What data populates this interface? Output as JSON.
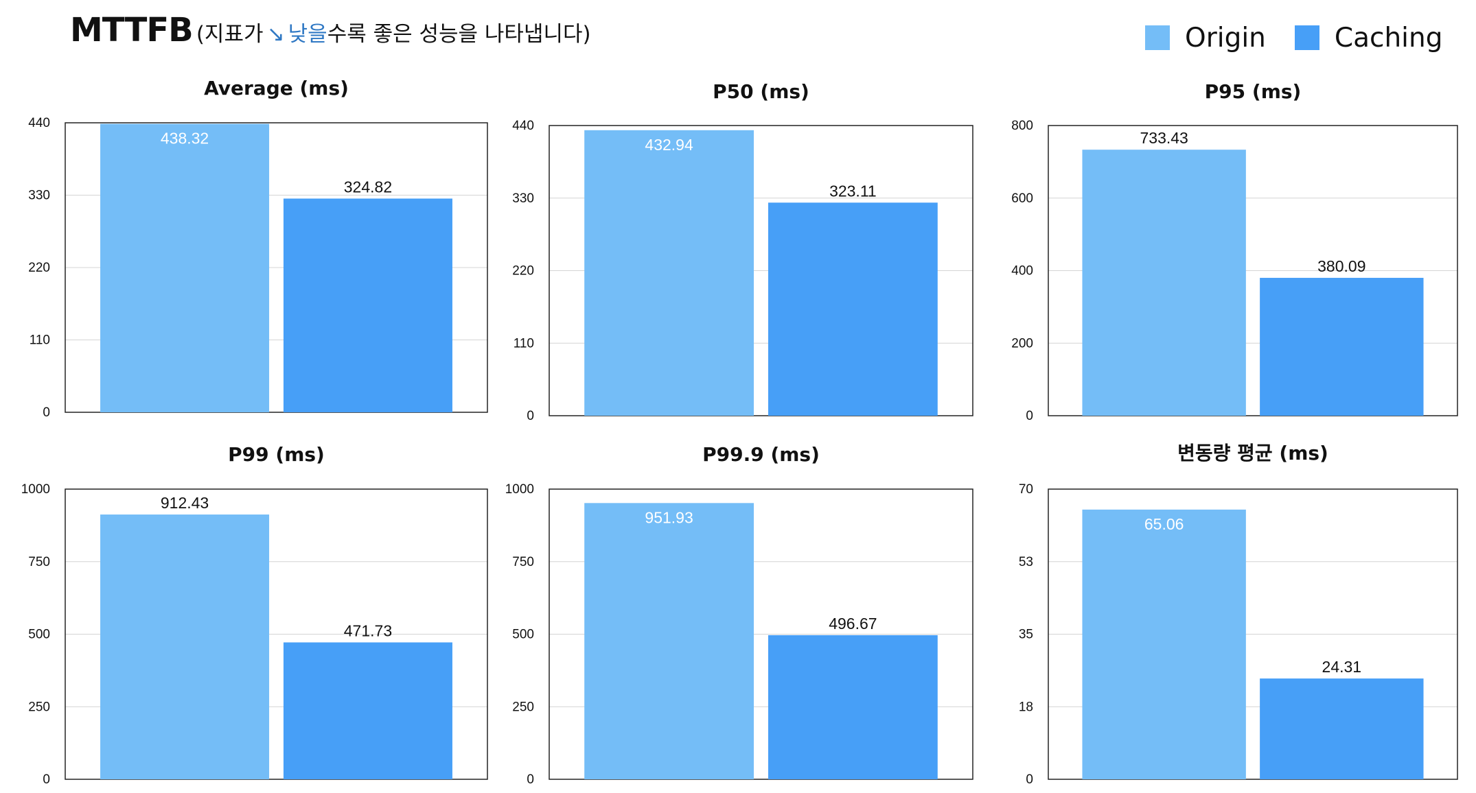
{
  "header": {
    "title_main": "MTTFB",
    "title_paren_open": "(지표가",
    "title_arrow": "↘",
    "title_highlight": "낮을",
    "title_rest": "수록 좋은 성능을 나타냅니다)"
  },
  "legend": [
    {
      "name": "Origin",
      "color": "#74bdf7"
    },
    {
      "name": "Caching",
      "color": "#479ff7"
    }
  ],
  "chart_data": [
    {
      "type": "bar",
      "title": "Average (ms)",
      "categories": [
        "Origin",
        "Caching"
      ],
      "values": [
        438.32,
        324.82
      ],
      "ylim": [
        0,
        440
      ],
      "yticks": [
        0,
        110,
        220,
        330,
        440
      ],
      "xlabel": "",
      "ylabel": "",
      "grid": true,
      "legend": "top-right"
    },
    {
      "type": "bar",
      "title": "P50 (ms)",
      "categories": [
        "Origin",
        "Caching"
      ],
      "values": [
        432.94,
        323.11
      ],
      "ylim": [
        0,
        440
      ],
      "yticks": [
        0,
        110,
        220,
        330,
        440
      ],
      "xlabel": "",
      "ylabel": "",
      "grid": true,
      "legend": "top-right"
    },
    {
      "type": "bar",
      "title": "P95 (ms)",
      "categories": [
        "Origin",
        "Caching"
      ],
      "values": [
        733.43,
        380.09
      ],
      "ylim": [
        0,
        800
      ],
      "yticks": [
        0,
        200,
        400,
        600,
        800
      ],
      "xlabel": "",
      "ylabel": "",
      "grid": true,
      "legend": "top-right"
    },
    {
      "type": "bar",
      "title": "P99 (ms)",
      "categories": [
        "Origin",
        "Caching"
      ],
      "values": [
        912.43,
        471.73
      ],
      "ylim": [
        0,
        1000
      ],
      "yticks": [
        0,
        250,
        500,
        750,
        1000
      ],
      "xlabel": "",
      "ylabel": "",
      "grid": true,
      "legend": "top-right"
    },
    {
      "type": "bar",
      "title": "P99.9 (ms)",
      "categories": [
        "Origin",
        "Caching"
      ],
      "values": [
        951.93,
        496.67
      ],
      "ylim": [
        0,
        1000
      ],
      "yticks": [
        0,
        250,
        500,
        750,
        1000
      ],
      "xlabel": "",
      "ylabel": "",
      "grid": true,
      "legend": "top-right"
    },
    {
      "type": "bar",
      "title": "변동량 평균 (ms)",
      "categories": [
        "Origin",
        "Caching"
      ],
      "values": [
        65.06,
        24.31
      ],
      "ylim": [
        0,
        70
      ],
      "yticks": [
        0,
        17.5,
        35,
        52.5,
        70
      ],
      "ytick_labels": [
        "0",
        "18",
        "35",
        "53",
        "70"
      ],
      "xlabel": "",
      "ylabel": "",
      "grid": true,
      "legend": "top-right"
    }
  ]
}
